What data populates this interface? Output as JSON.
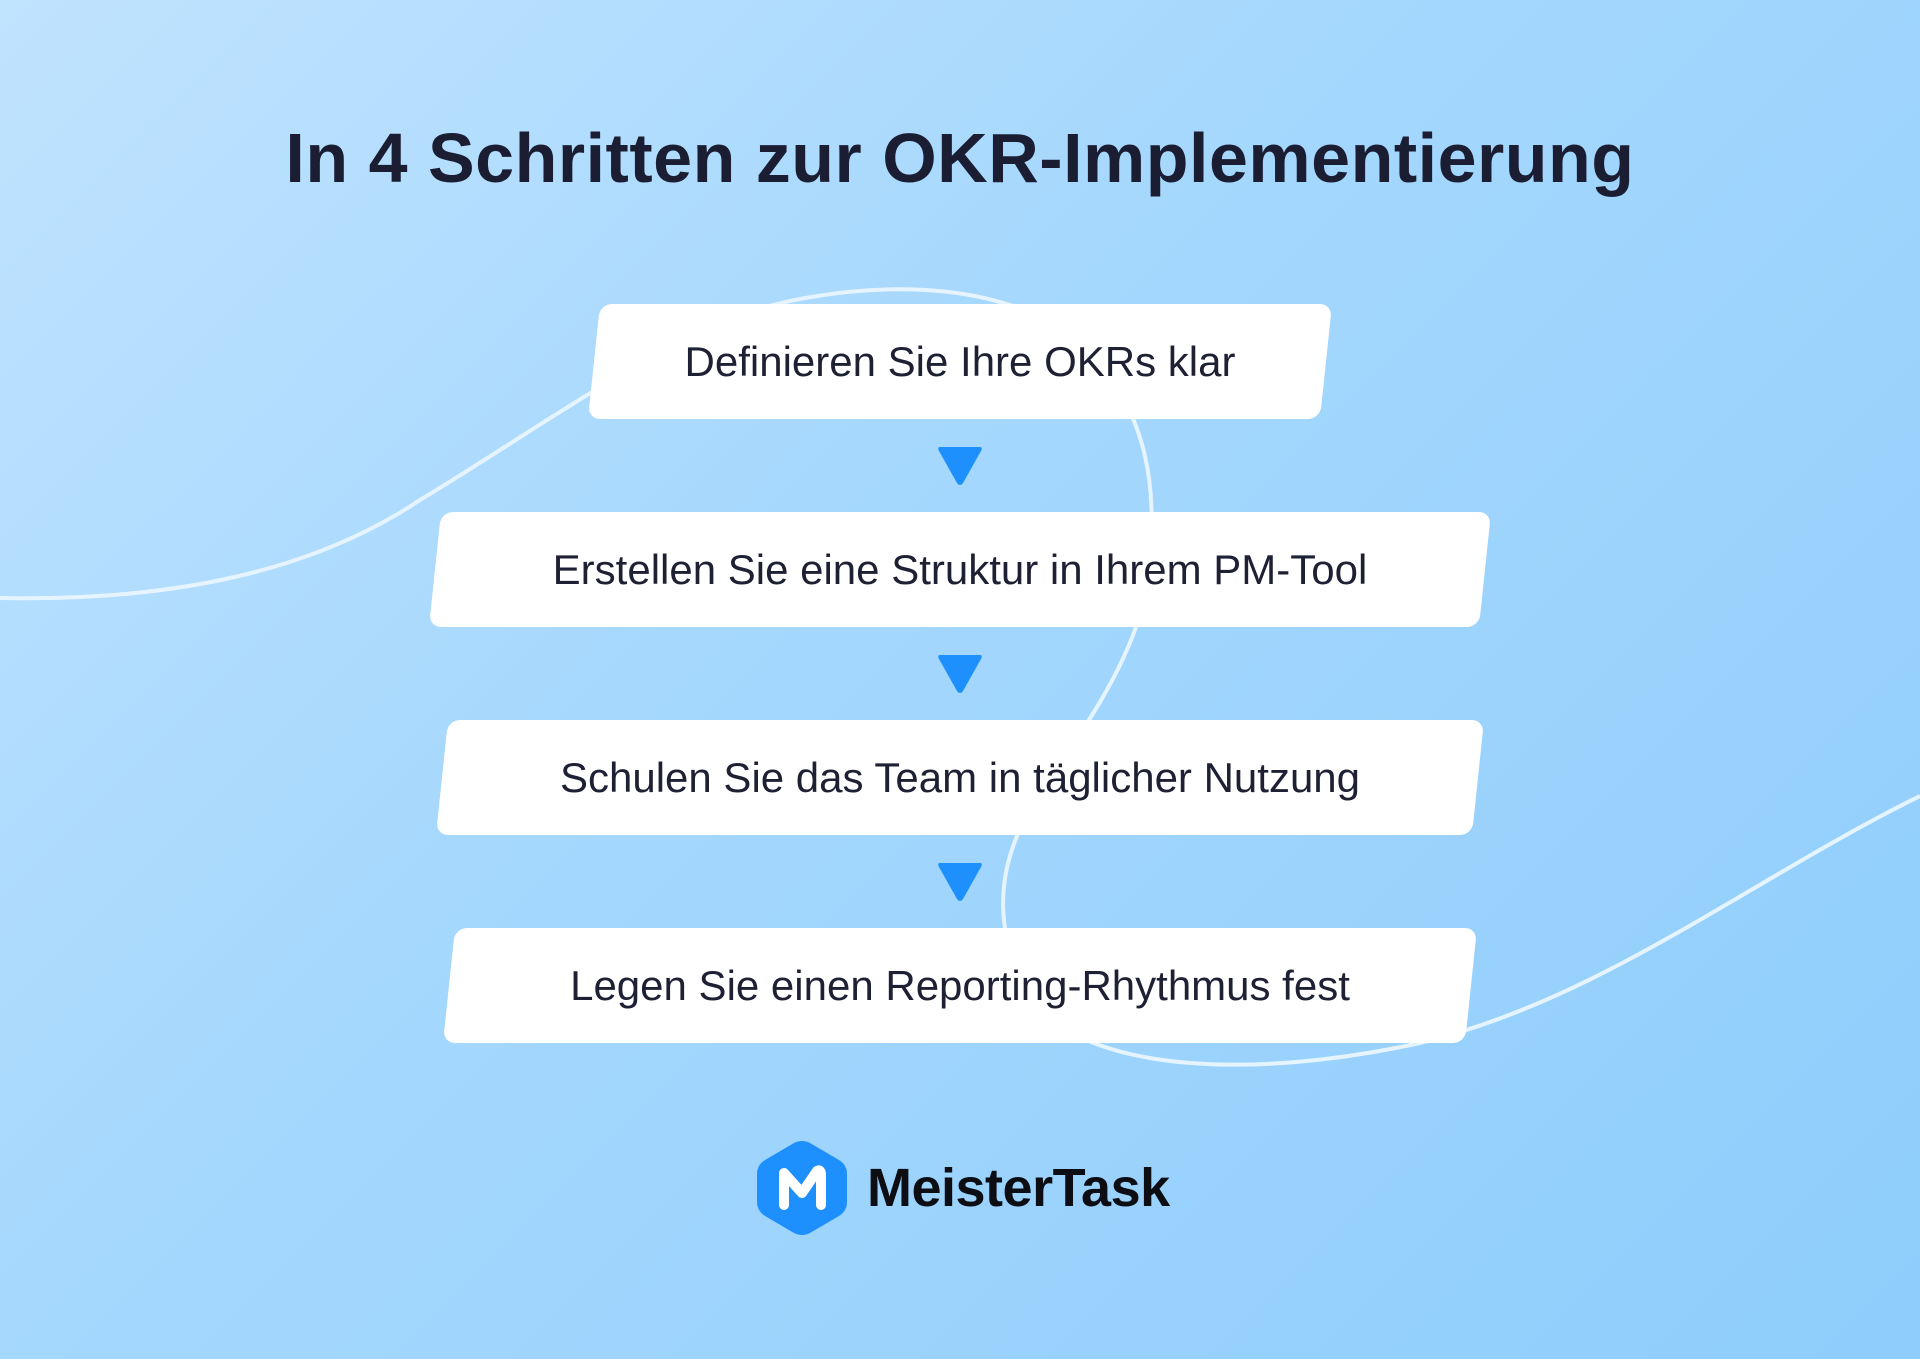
{
  "title": "In 4 Schritten zur OKR-Implementierung",
  "steps": [
    {
      "label": "Definieren Sie Ihre OKRs klar"
    },
    {
      "label": "Erstellen Sie eine Struktur in Ihrem PM-Tool"
    },
    {
      "label": "Schulen Sie das Team in täglicher Nutzung"
    },
    {
      "label": "Legen Sie einen Reporting-Rhythmus fest"
    }
  ],
  "arrow_icon": "triangle-down",
  "logo": {
    "name": "MeisterTask",
    "icon": "meistertask-hexagon-logo"
  },
  "colors": {
    "accent": "#1e90fd",
    "title": "#1b1e33",
    "background": "#a6d8fd",
    "box": "#ffffff"
  }
}
